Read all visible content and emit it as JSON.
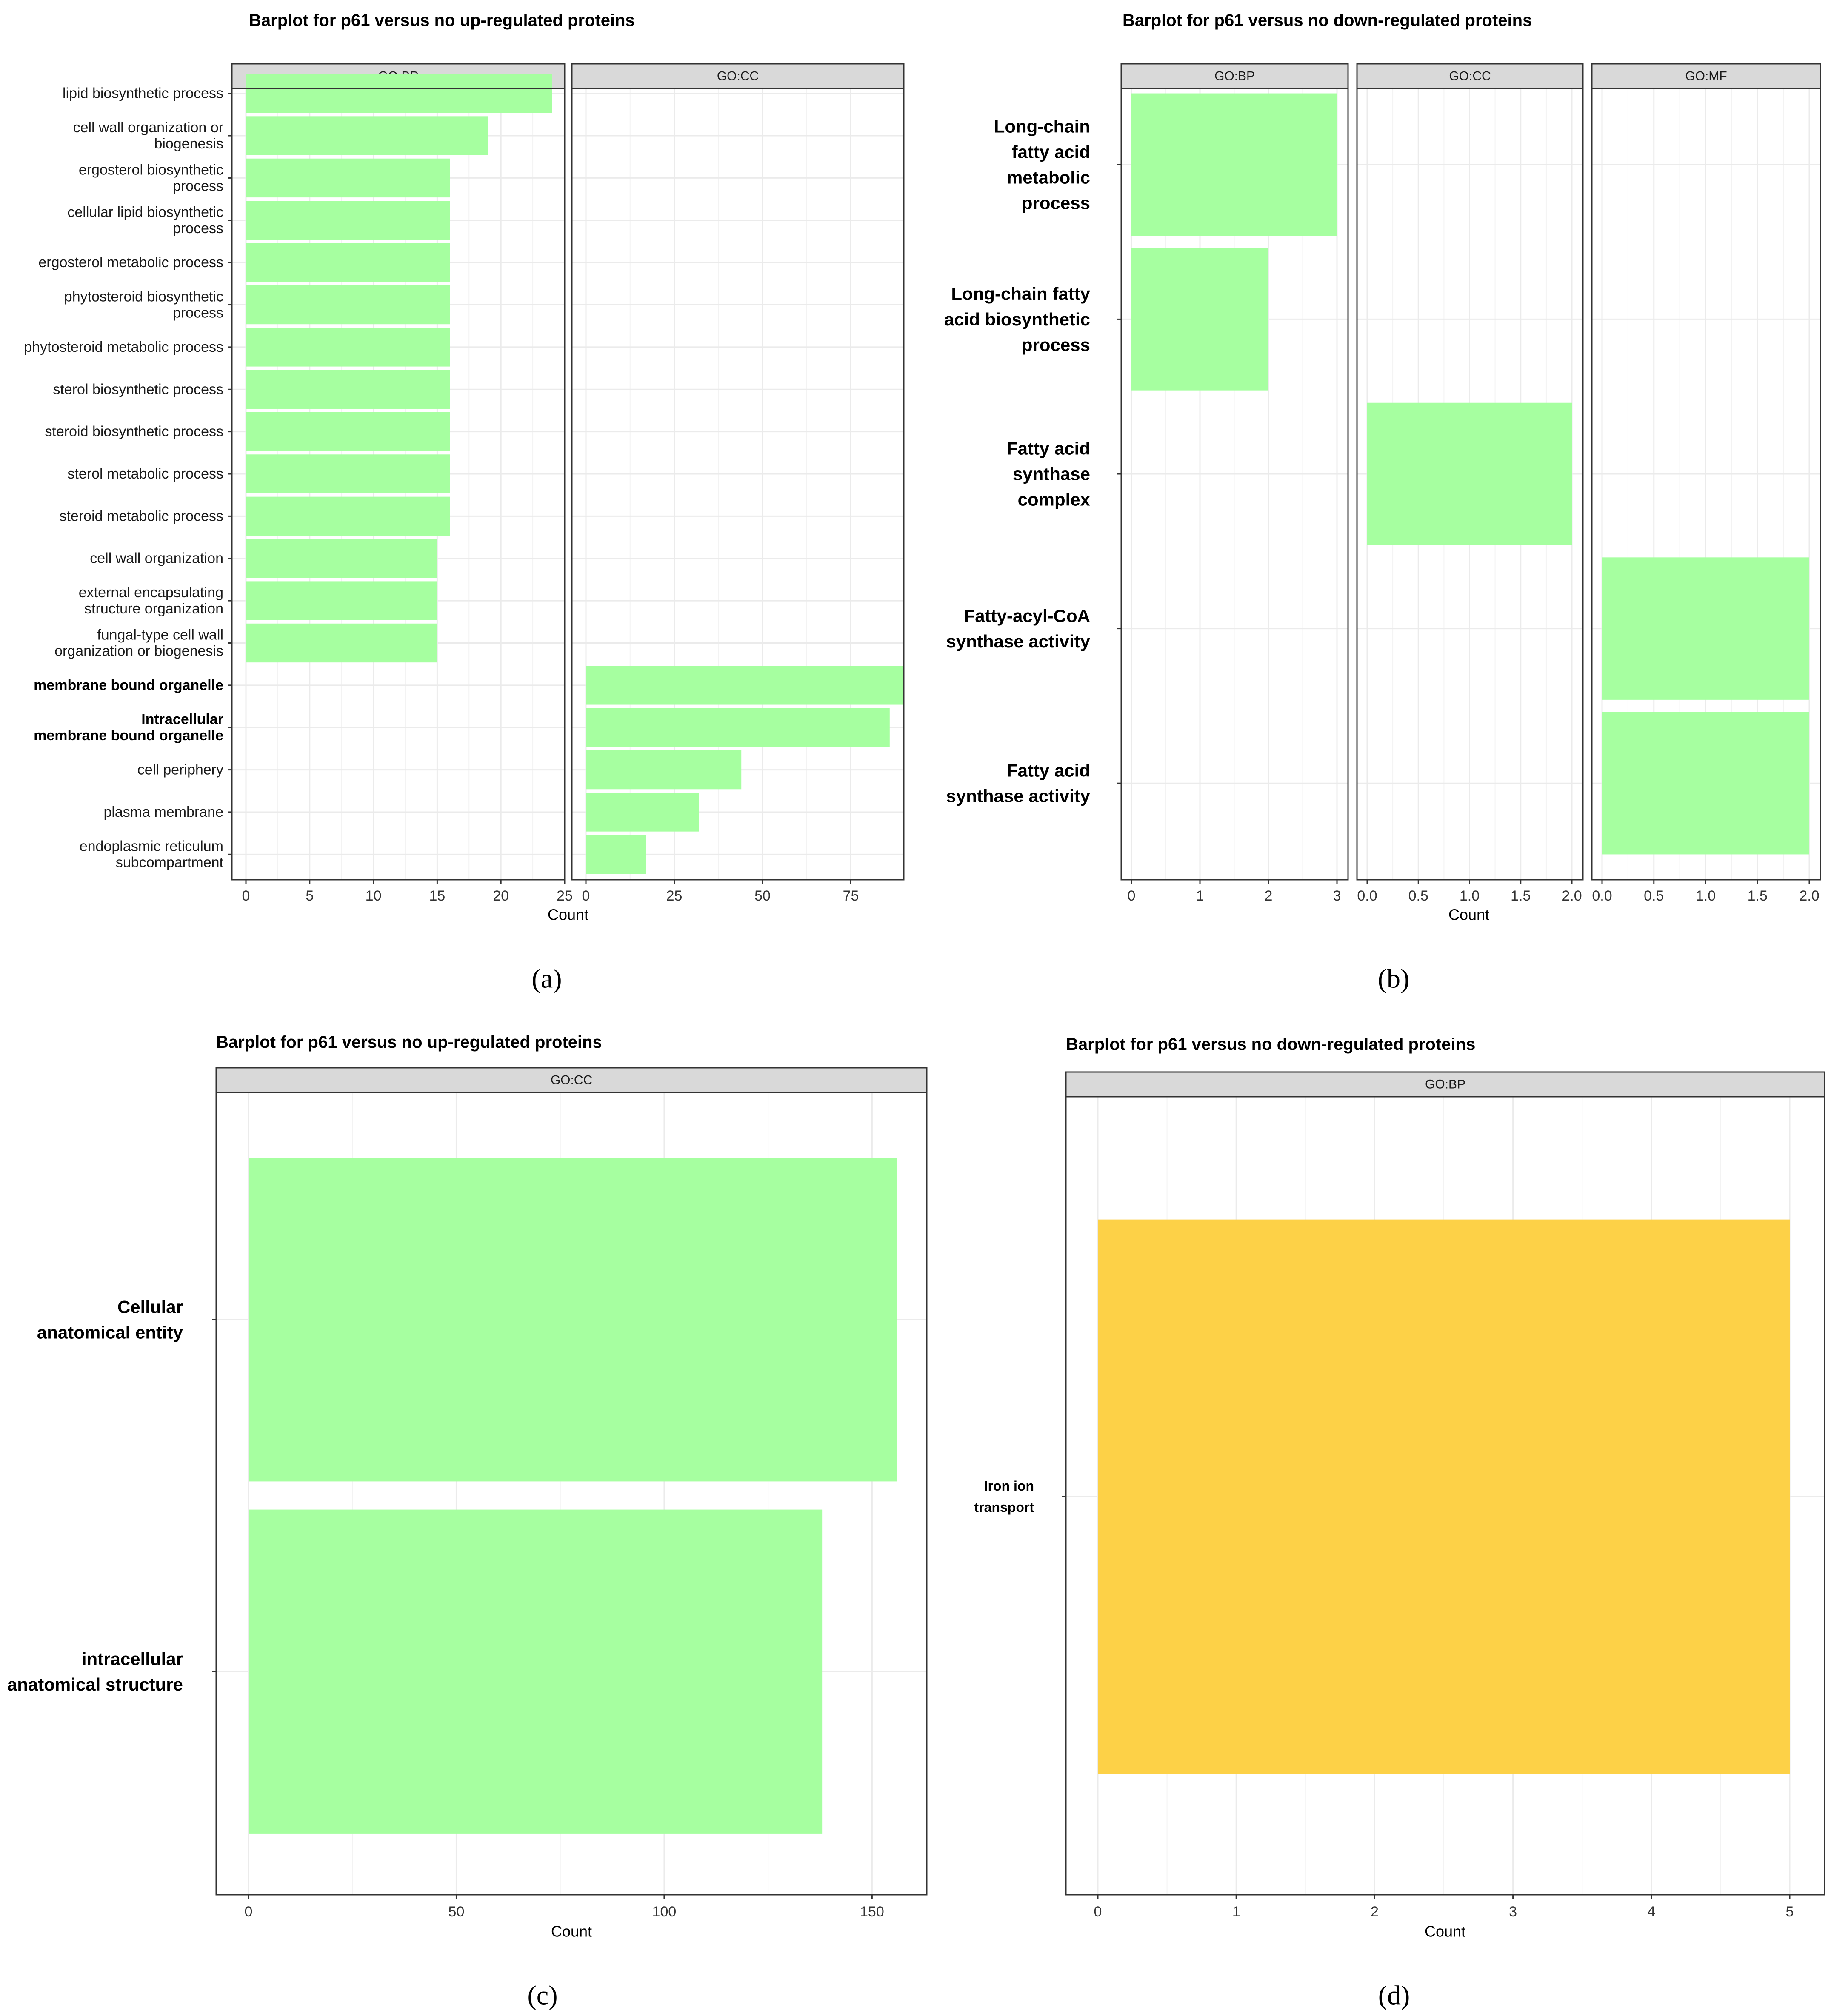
{
  "colors": {
    "green": "#a6ffa0",
    "yellow": "#fdd147",
    "strip": "#d9d9d9",
    "grid": "#ebebeb"
  },
  "subfigure_labels": [
    "(a)",
    "(b)",
    "(c)",
    "(d)"
  ],
  "chart_data": [
    {
      "id": "a",
      "type": "bar",
      "orientation": "horizontal",
      "title": "Barplot for p61 versus no up-regulated proteins",
      "xlabel": "Count",
      "ylabel": "",
      "categories": [
        "lipid biosynthetic process",
        "cell wall organization or\nbiogenesis",
        "ergosterol biosynthetic\nprocess",
        "cellular lipid biosynthetic\nprocess",
        "ergosterol metabolic process",
        "phytosteroid biosynthetic\nprocess",
        "phytosteroid metabolic process",
        "sterol biosynthetic process",
        "steroid biosynthetic process",
        "sterol metabolic process",
        "steroid metabolic process",
        "cell wall organization",
        "external encapsulating\nstructure organization",
        "fungal-type cell wall\norganization or biogenesis",
        "membrane bound organelle",
        "Intracellular\nmembrane bound organelle",
        "cell periphery",
        "plasma membrane",
        "endoplasmic reticulum\nsubcompartment"
      ],
      "bold_categories": [
        14,
        15
      ],
      "facets": [
        {
          "label": "GO:BP",
          "xlim": [
            0,
            25
          ],
          "ticks": [
            0,
            5,
            10,
            15,
            20,
            25
          ],
          "values": [
            24,
            19,
            16,
            16,
            16,
            16,
            16,
            16,
            16,
            16,
            16,
            15,
            15,
            15,
            null,
            null,
            null,
            null,
            null
          ]
        },
        {
          "label": "GO:CC",
          "xlim": [
            0,
            90
          ],
          "ticks": [
            0,
            25,
            50,
            75
          ],
          "values": [
            null,
            null,
            null,
            null,
            null,
            null,
            null,
            null,
            null,
            null,
            null,
            null,
            null,
            null,
            90,
            86,
            44,
            32,
            17
          ]
        }
      ]
    },
    {
      "id": "b",
      "type": "bar",
      "orientation": "horizontal",
      "title": "Barplot for p61 versus no down-regulated proteins",
      "xlabel": "Count",
      "ylabel": "",
      "categories": [
        "Long-chain\nfatty acid\nmetabolic\nprocess",
        "Long-chain fatty\nacid biosynthetic\nprocess",
        "Fatty acid\nsynthase\ncomplex",
        "Fatty-acyl-CoA\nsynthase activity",
        "Fatty acid\nsynthase activity"
      ],
      "facets": [
        {
          "label": "GO:BP",
          "xlim": [
            0,
            3
          ],
          "ticks": [
            "0",
            "1",
            "2",
            "3"
          ],
          "values": [
            3,
            2,
            null,
            null,
            null
          ]
        },
        {
          "label": "GO:CC",
          "xlim": [
            0,
            2
          ],
          "ticks": [
            "0.0",
            "0.5",
            "1.0",
            "1.5",
            "2.0"
          ],
          "values": [
            null,
            null,
            2,
            null,
            null
          ]
        },
        {
          "label": "GO:MF",
          "xlim": [
            0,
            2
          ],
          "ticks": [
            "0.0",
            "0.5",
            "1.0",
            "1.5",
            "2.0"
          ],
          "values": [
            null,
            null,
            null,
            2,
            2
          ]
        }
      ]
    },
    {
      "id": "c",
      "type": "bar",
      "orientation": "horizontal",
      "title": "Barplot for p61 versus no up-regulated proteins",
      "xlabel": "Count",
      "ylabel": "",
      "categories": [
        "Cellular\nanatomical entity",
        "intracellular\nanatomical structure"
      ],
      "facets": [
        {
          "label": "GO:CC",
          "xlim": [
            0,
            156
          ],
          "ticks": [
            "0",
            "50",
            "100",
            "150"
          ],
          "values": [
            156,
            138
          ]
        }
      ]
    },
    {
      "id": "d",
      "type": "bar",
      "orientation": "horizontal",
      "title": "Barplot for p61 versus no down-regulated proteins",
      "xlabel": "Count",
      "ylabel": "",
      "categories": [
        "Iron ion\ntransport"
      ],
      "facets": [
        {
          "label": "GO:BP",
          "xlim": [
            0,
            5
          ],
          "ticks": [
            "0",
            "1",
            "2",
            "3",
            "4",
            "5"
          ],
          "values": [
            5
          ]
        }
      ]
    }
  ]
}
